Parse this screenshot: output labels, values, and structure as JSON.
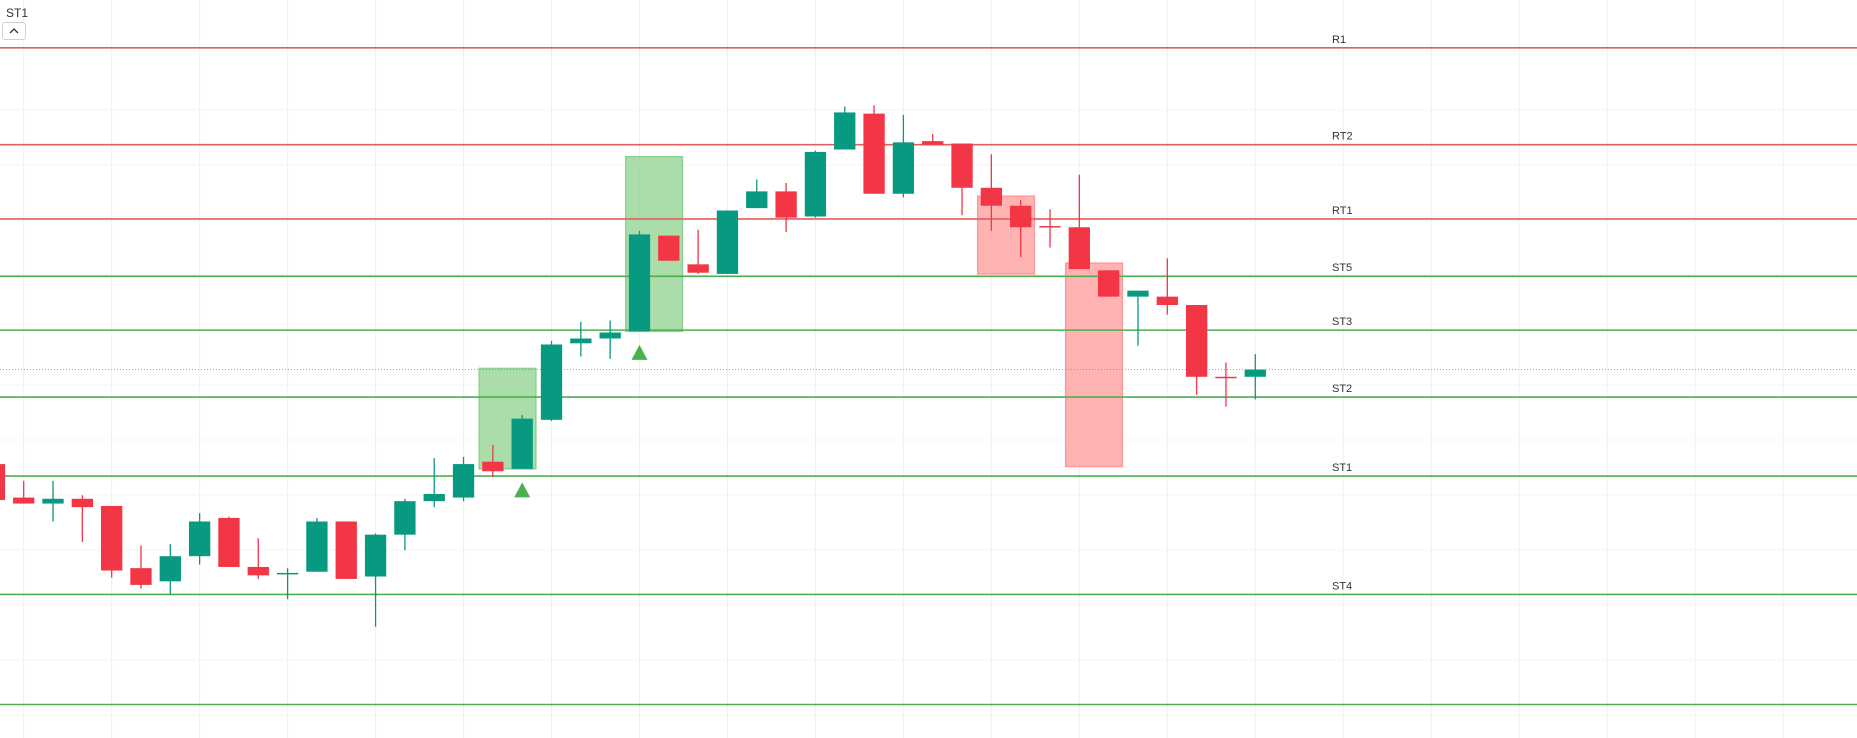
{
  "chart_data": {
    "type": "candlestick",
    "indicator_label": "ST1",
    "ylim": [
      0,
      617
    ],
    "up_color": "#089981",
    "down_color": "#f23645",
    "candles": {
      "open": [
        229,
        201,
        196,
        200,
        194,
        142,
        131,
        152,
        184,
        143,
        137,
        139,
        181,
        135,
        170,
        198,
        201,
        231,
        225,
        266,
        330,
        334,
        340,
        420,
        396,
        388,
        443,
        457,
        436,
        492,
        522,
        455,
        499,
        497,
        460,
        445,
        428,
        427,
        391,
        369,
        369,
        362,
        302,
        302
      ],
      "high": [
        229,
        215,
        215,
        203,
        194,
        161,
        162,
        188,
        185,
        167,
        142,
        184,
        181,
        171,
        200,
        234,
        235,
        245,
        270,
        332,
        348,
        349,
        424,
        420,
        425,
        441,
        467,
        464,
        491,
        528,
        529,
        521,
        505,
        497,
        488,
        450,
        442,
        471,
        391,
        374,
        401,
        362,
        314,
        321
      ],
      "low": [
        199,
        196,
        181,
        164,
        134,
        125,
        120,
        145,
        143,
        133,
        116,
        139,
        133,
        93,
        157,
        193,
        198,
        218,
        225,
        265,
        319,
        317,
        340,
        399,
        388,
        388,
        443,
        423,
        435,
        492,
        455,
        452,
        496,
        437,
        424,
        402,
        410,
        392,
        369,
        328,
        354,
        287,
        277,
        283
      ],
      "close": [
        199,
        196,
        200,
        193,
        140,
        128,
        152,
        181,
        143,
        136,
        138,
        181,
        133,
        170,
        198,
        204,
        229,
        223,
        267,
        329,
        334,
        339,
        421,
        399,
        389,
        441,
        457,
        435,
        490,
        523,
        455,
        498,
        496,
        460,
        445,
        427,
        427,
        392,
        369,
        374,
        362,
        302,
        301,
        308
      ]
    },
    "levels": [
      {
        "name": "R1",
        "value": 577,
        "color": "#e06060"
      },
      {
        "name": "RT2",
        "value": 496,
        "color": "#e06060"
      },
      {
        "name": "RT1",
        "value": 434,
        "color": "#e06060"
      },
      {
        "name": "ST5",
        "value": 386,
        "color": "#4caf50"
      },
      {
        "name": "ST3",
        "value": 341,
        "color": "#4caf50"
      },
      {
        "name": "ST2",
        "value": 285,
        "color": "#4caf50"
      },
      {
        "name": "ST1",
        "value": 219,
        "color": "#4caf50"
      },
      {
        "name": "ST4",
        "value": 120,
        "color": "#4caf50"
      },
      {
        "name": null,
        "value": 28,
        "color": "#4caf50"
      }
    ],
    "last_price": 308,
    "zones": [
      {
        "start": 17,
        "end": 18,
        "bottom": 225,
        "top": 309,
        "color": "#8fd18f"
      },
      {
        "start": 22,
        "end": 23,
        "bottom": 340,
        "top": 486,
        "color": "#8fd18f"
      },
      {
        "start": 34,
        "end": 35,
        "bottom": 388,
        "top": 453,
        "color": "#ff9a9a"
      },
      {
        "start": 37,
        "end": 38,
        "bottom": 227,
        "top": 397,
        "color": "#ff9a9a"
      }
    ],
    "signals": [
      {
        "index": 18,
        "value": 207,
        "color": "#4caf50"
      },
      {
        "index": 22,
        "value": 322,
        "color": "#4caf50"
      }
    ]
  }
}
